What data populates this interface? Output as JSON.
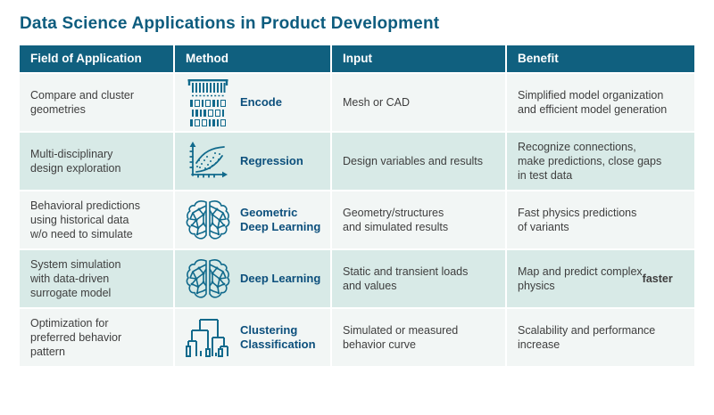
{
  "page_title": "Data Science Applications in Product Development",
  "colors": {
    "title_text": "#0d5c7e",
    "header_bg": "#10607f",
    "header_text": "#ffffff",
    "row_light_bg": "#f2f6f5",
    "row_teal_bg": "#d8eae7",
    "body_text": "#3e3e3e",
    "method_label_text": "#0c4f7c",
    "icon_stroke": "#116a8c"
  },
  "chart_data": {
    "type": "table",
    "title": "Data Science Applications in Product Development",
    "columns": [
      "Field of Application",
      "Method",
      "Input",
      "Benefit"
    ],
    "rows": [
      {
        "field": "Compare and cluster\ngeometries",
        "method": "Encode",
        "method_icon": "binary-encode-icon",
        "input": "Mesh or CAD",
        "benefit": "Simplified model organization\nand efficient model generation",
        "benefit_bold": ""
      },
      {
        "field": "Multi-disciplinary\ndesign exploration",
        "method": "Regression",
        "method_icon": "regression-scatter-icon",
        "input": "Design variables and results",
        "benefit": "Recognize connections,\nmake predictions, close gaps\nin test data",
        "benefit_bold": ""
      },
      {
        "field": "Behavioral predictions\nusing historical data\nw/o need to simulate",
        "method": "Geometric\nDeep Learning",
        "method_icon": "brain-network-icon",
        "input": "Geometry/structures\nand simulated results",
        "benefit": "Fast physics predictions\nof variants",
        "benefit_bold": ""
      },
      {
        "field": "System simulation\nwith data-driven\nsurrogate model",
        "method": "Deep Learning",
        "method_icon": "brain-network-icon",
        "input": "Static and transient loads\nand values",
        "benefit": "Map and predict complex\nphysics ",
        "benefit_bold": "faster"
      },
      {
        "field": "Optimization for\npreferred behavior\npattern",
        "method": "Clustering\nClassification",
        "method_icon": "dendrogram-icon",
        "input": "Simulated or measured\nbehavior curve",
        "benefit": "Scalability and performance\nincrease",
        "benefit_bold": ""
      }
    ],
    "encode_binary": [
      "1010110",
      "1111001",
      "1001110"
    ]
  }
}
